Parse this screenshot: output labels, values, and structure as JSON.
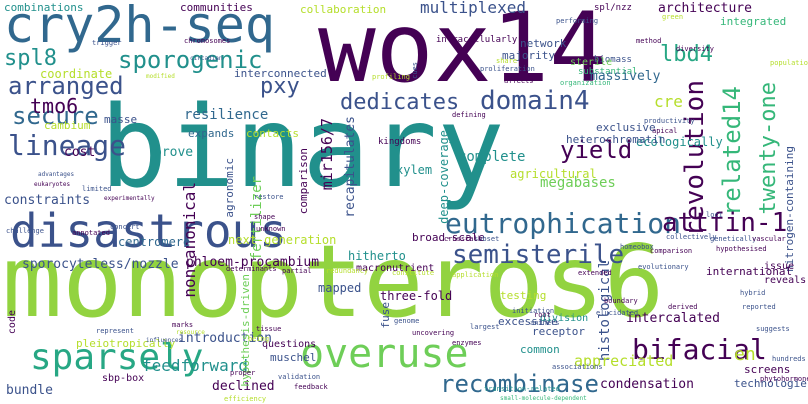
{
  "palette": {
    "dark_purple": "#440154",
    "indigo": "#3b528b",
    "blue": "#31688e",
    "teal": "#21908c",
    "teal_green": "#27a784",
    "green": "#35b779",
    "light_green": "#6ece58",
    "lime": "#92d340",
    "yellow_green": "#b5de2b",
    "yellow": "#dde318"
  },
  "words": [
    "binary",
    "monopteros6",
    "wox14",
    "cry2h-seq",
    "disastrous",
    "overuse",
    "sparsely",
    "eutrophication",
    "semisterile",
    "recombinase",
    "bifacial",
    "dedicates",
    "domain4",
    "lineage",
    "revolution",
    "related14",
    "twenty-one",
    "attfin-1",
    "sporogenic",
    "arranged",
    "secure",
    "yield",
    "lbd4",
    "pxy",
    "tmo6",
    "spl8",
    "multiplexed",
    "combinations",
    "communities",
    "collaboration",
    "spl/nzz",
    "architecture",
    "integrated",
    "network",
    "majority",
    "biomass",
    "sterile",
    "substantial",
    "coordinate",
    "interconnected",
    "massively",
    "resilience",
    "cre",
    "exclusive",
    "ecologically",
    "cambium",
    "masse",
    "expands",
    "contacts",
    "cost",
    "prove",
    "noncanonical",
    "agronomic",
    "fertilizer",
    "mir156/7",
    "recapitulates",
    "comparison",
    "kingdoms",
    "deep-coverage",
    "heterochromatin",
    "nitrogen-containing",
    "constraints",
    "complete",
    "agricultural",
    "megabases",
    "next-generation",
    "centromere",
    "xylem",
    "hitherto",
    "broad-scale",
    "macronutrient",
    "sporocyteless/nozzle",
    "phloem-procambium",
    "mapped",
    "three-fold",
    "histological",
    "international",
    "issue",
    "reveals",
    "introduction",
    "pleiotropically",
    "questions",
    "muschel",
    "excessive",
    "division",
    "receptor",
    "intercalated",
    "en",
    "appreciated",
    "condensation",
    "feedforward",
    "declined",
    "bundle",
    "code",
    "screens",
    "technologies",
    "sbp-box",
    "testing",
    "common",
    "fuse",
    "hypothesis-driven",
    "transition-related",
    "small-molecule-dependent",
    "associations",
    "efficiency",
    "feedback",
    "validation",
    "proper",
    "suggests",
    "phytohormones",
    "hundreds",
    "intracellularly",
    "performing",
    "trigger",
    "chromosomes",
    "circadian",
    "method",
    "diversity",
    "population",
    "modified",
    "anthers",
    "root",
    "boundary",
    "marks",
    "tissue",
    "represent",
    "influences",
    "resource",
    "being",
    "hybrid",
    "enzymes",
    "genome",
    "initiation",
    "uncovering",
    "largest",
    "elucidated",
    "derived",
    "reported",
    "advantages",
    "eukaryotes",
    "experimentally",
    "limited",
    "restore",
    "shape",
    "challenge",
    "annotated",
    "concert",
    "unknown",
    "subset",
    "crosstalk",
    "application",
    "extended",
    "evolutionary",
    "collectively",
    "loci",
    "homeobox",
    "comparison",
    "hypothesised",
    "genetically",
    "vascular",
    "determinants",
    "partial",
    "redundancy",
    "constitute",
    "green",
    "productivity",
    "apical",
    "organization",
    "affects",
    "proliferation",
    "cues",
    "share",
    "profiling",
    "defining",
    "genes",
    "select"
  ]
}
